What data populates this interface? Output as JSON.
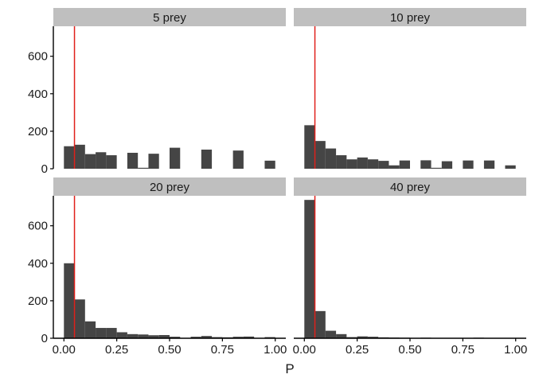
{
  "colors": {
    "bar": "#454545",
    "strip": "#bfbfbf",
    "vline": "#e0201b",
    "axis": "#000000",
    "text": "#1a1a1a"
  },
  "chart_data": {
    "type": "bar",
    "subtype": "faceted-histogram",
    "xlabel": "P",
    "ylabel": "",
    "xlim": [
      -0.05,
      1.05
    ],
    "ylim": [
      0,
      760
    ],
    "x_ticks": [
      {
        "value": 0,
        "label": "0.00"
      },
      {
        "value": 0.25,
        "label": "0.25"
      },
      {
        "value": 0.5,
        "label": "0.50"
      },
      {
        "value": 0.75,
        "label": "0.75"
      },
      {
        "value": 1,
        "label": "1.00"
      }
    ],
    "y_ticks": [
      {
        "value": 0,
        "label": "0"
      },
      {
        "value": 200,
        "label": "200"
      },
      {
        "value": 400,
        "label": "400"
      },
      {
        "value": 600,
        "label": "600"
      }
    ],
    "bin_width": 0.05,
    "reference_line": {
      "x": 0.05,
      "color": "#e0201b"
    },
    "facets": [
      {
        "title": "5 prey",
        "bins": [
          {
            "x": 0.0,
            "count": 120
          },
          {
            "x": 0.05,
            "count": 128
          },
          {
            "x": 0.1,
            "count": 78
          },
          {
            "x": 0.15,
            "count": 88
          },
          {
            "x": 0.2,
            "count": 72
          },
          {
            "x": 0.3,
            "count": 85
          },
          {
            "x": 0.35,
            "count": 5
          },
          {
            "x": 0.4,
            "count": 80
          },
          {
            "x": 0.5,
            "count": 112
          },
          {
            "x": 0.65,
            "count": 102
          },
          {
            "x": 0.8,
            "count": 97
          },
          {
            "x": 0.95,
            "count": 43
          }
        ]
      },
      {
        "title": "10 prey",
        "bins": [
          {
            "x": 0.0,
            "count": 232
          },
          {
            "x": 0.05,
            "count": 148
          },
          {
            "x": 0.1,
            "count": 108
          },
          {
            "x": 0.15,
            "count": 72
          },
          {
            "x": 0.2,
            "count": 50
          },
          {
            "x": 0.25,
            "count": 60
          },
          {
            "x": 0.3,
            "count": 50
          },
          {
            "x": 0.35,
            "count": 42
          },
          {
            "x": 0.4,
            "count": 18
          },
          {
            "x": 0.45,
            "count": 44
          },
          {
            "x": 0.55,
            "count": 45
          },
          {
            "x": 0.6,
            "count": 5
          },
          {
            "x": 0.65,
            "count": 40
          },
          {
            "x": 0.75,
            "count": 44
          },
          {
            "x": 0.85,
            "count": 44
          },
          {
            "x": 0.95,
            "count": 18
          }
        ]
      },
      {
        "title": "20 prey",
        "bins": [
          {
            "x": 0.0,
            "count": 400
          },
          {
            "x": 0.05,
            "count": 207
          },
          {
            "x": 0.1,
            "count": 90
          },
          {
            "x": 0.15,
            "count": 55
          },
          {
            "x": 0.2,
            "count": 55
          },
          {
            "x": 0.25,
            "count": 32
          },
          {
            "x": 0.3,
            "count": 22
          },
          {
            "x": 0.35,
            "count": 20
          },
          {
            "x": 0.4,
            "count": 16
          },
          {
            "x": 0.45,
            "count": 17
          },
          {
            "x": 0.5,
            "count": 8
          },
          {
            "x": 0.6,
            "count": 8
          },
          {
            "x": 0.65,
            "count": 12
          },
          {
            "x": 0.7,
            "count": 6
          },
          {
            "x": 0.75,
            "count": 5
          },
          {
            "x": 0.8,
            "count": 8
          },
          {
            "x": 0.85,
            "count": 9
          },
          {
            "x": 0.95,
            "count": 6
          }
        ]
      },
      {
        "title": "40 prey",
        "bins": [
          {
            "x": 0.0,
            "count": 738
          },
          {
            "x": 0.05,
            "count": 145
          },
          {
            "x": 0.1,
            "count": 40
          },
          {
            "x": 0.15,
            "count": 22
          },
          {
            "x": 0.2,
            "count": 6
          },
          {
            "x": 0.25,
            "count": 10
          },
          {
            "x": 0.3,
            "count": 8
          },
          {
            "x": 0.35,
            "count": 5
          },
          {
            "x": 0.4,
            "count": 4
          },
          {
            "x": 0.45,
            "count": 3
          },
          {
            "x": 0.55,
            "count": 3
          },
          {
            "x": 0.6,
            "count": 2
          },
          {
            "x": 0.7,
            "count": 2
          },
          {
            "x": 0.8,
            "count": 3
          },
          {
            "x": 0.9,
            "count": 2
          }
        ]
      }
    ]
  }
}
